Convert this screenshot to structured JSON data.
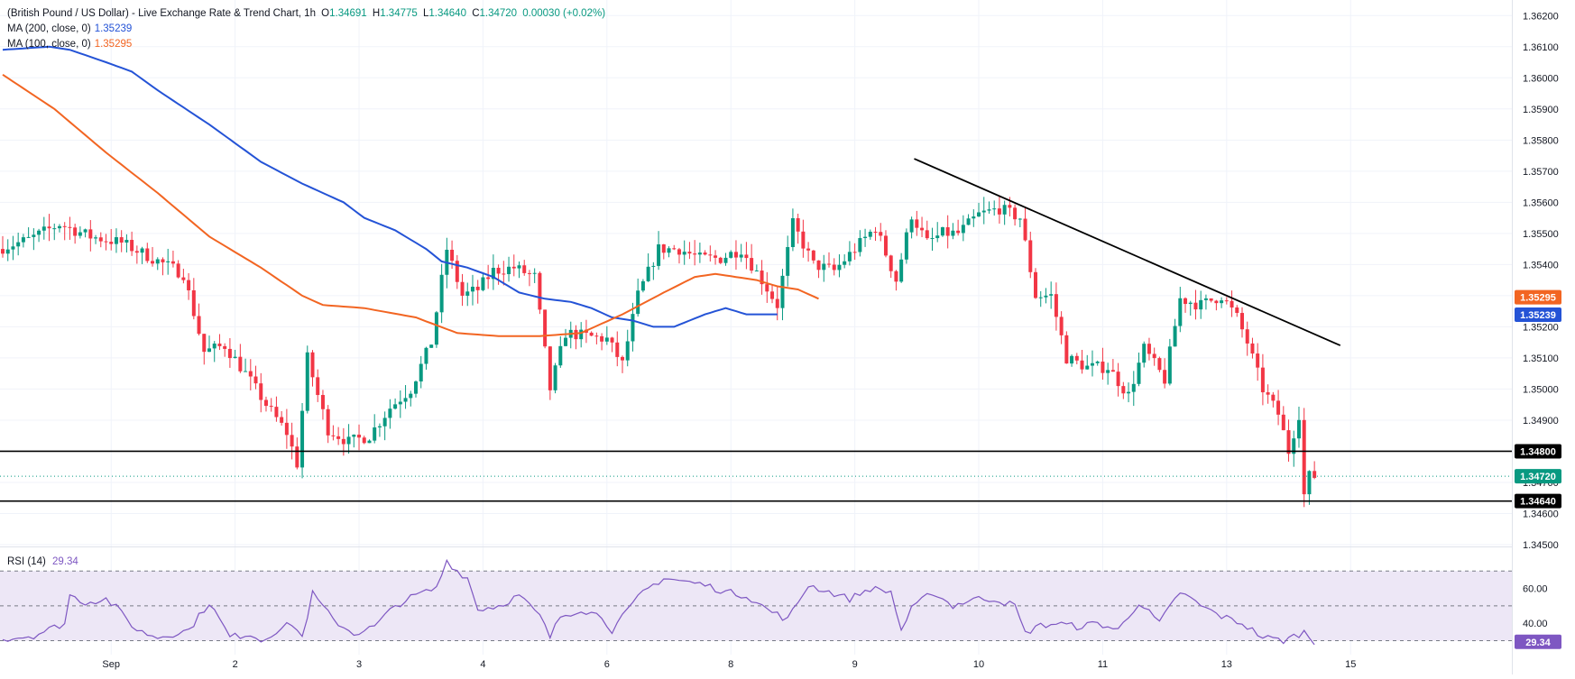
{
  "header": {
    "symbol_title": "(British Pound / US Dollar) - Live Exchange Rate & Trend Chart, 1h",
    "ohlc": {
      "o_label": "O",
      "o": "1.34691",
      "h_label": "H",
      "h": "1.34775",
      "l_label": "L",
      "l": "1.34640",
      "c_label": "C",
      "c": "1.34720",
      "change": "0.00030 (+0.02%)"
    },
    "ma200": {
      "label": "MA (200, close, 0)",
      "value": "1.35239"
    },
    "ma100": {
      "label": "MA (100, close, 0)",
      "value": "1.35295"
    },
    "rsi": {
      "label": "RSI (14)",
      "value": "29.34"
    }
  },
  "colors": {
    "up": "#089981",
    "down": "#f23645",
    "ma200": "#2453d6",
    "ma100": "#f26522",
    "rsi": "#7e57c2",
    "rsi_band": "#ede7f6",
    "axis_text": "#131722",
    "grid": "#f0f3fa",
    "level": "#000000"
  },
  "chart_data": [
    {
      "type": "candlestick",
      "title": "(British Pound / US Dollar) - Live Exchange Rate & Trend Chart, 1h",
      "ylim": [
        1.345,
        1.3625
      ],
      "y_ticks": [
        "1.36200",
        "1.36100",
        "1.36000",
        "1.35900",
        "1.35800",
        "1.35700",
        "1.35600",
        "1.35500",
        "1.35400",
        "1.35300",
        "1.35200",
        "1.35100",
        "1.35000",
        "1.34900",
        "1.34800",
        "1.34700",
        "1.34600",
        "1.34500"
      ],
      "x_ticks": [
        {
          "label": "Sep",
          "t": 21
        },
        {
          "label": "2",
          "t": 45
        },
        {
          "label": "3",
          "t": 69
        },
        {
          "label": "4",
          "t": 93
        },
        {
          "label": "6",
          "t": 117
        },
        {
          "label": "8",
          "t": 141
        },
        {
          "label": "9",
          "t": 165
        },
        {
          "label": "10",
          "t": 189
        },
        {
          "label": "11",
          "t": 213
        },
        {
          "label": "13",
          "t": 237
        },
        {
          "label": "15",
          "t": 261
        }
      ],
      "price_tags": [
        {
          "text": "1.35295",
          "value": 1.35295,
          "color": "#f26522"
        },
        {
          "text": "1.35239",
          "value": 1.35239,
          "color": "#2453d6"
        },
        {
          "text": "1.34800",
          "value": 1.348,
          "color": "#000000"
        },
        {
          "text": "1.34720",
          "value": 1.3472,
          "color": "#089981"
        },
        {
          "text": "1.34640",
          "value": 1.3464,
          "color": "#000000"
        }
      ],
      "horizontal_levels": [
        1.348,
        1.3464
      ],
      "trendline": {
        "t1": 176.5,
        "v1": 1.3574,
        "t2": 259,
        "v2": 1.3514
      },
      "ohlc_anchors": [
        [
          0,
          1.3545
        ],
        [
          6,
          1.3548
        ],
        [
          12,
          1.3553
        ],
        [
          18,
          1.3549
        ],
        [
          24,
          1.3547
        ],
        [
          30,
          1.3542
        ],
        [
          36,
          1.3537
        ],
        [
          40,
          1.3512
        ],
        [
          44,
          1.3514
        ],
        [
          48,
          1.3505
        ],
        [
          52,
          1.3495
        ],
        [
          56,
          1.3486
        ],
        [
          58,
          1.3476
        ],
        [
          60,
          1.351
        ],
        [
          62,
          1.3498
        ],
        [
          64,
          1.3487
        ],
        [
          68,
          1.3483
        ],
        [
          72,
          1.3485
        ],
        [
          76,
          1.3494
        ],
        [
          80,
          1.35
        ],
        [
          84,
          1.3515
        ],
        [
          87,
          1.3545
        ],
        [
          90,
          1.353
        ],
        [
          93,
          1.3532
        ],
        [
          96,
          1.3538
        ],
        [
          100,
          1.3539
        ],
        [
          104,
          1.3536
        ],
        [
          107,
          1.35
        ],
        [
          110,
          1.3518
        ],
        [
          114,
          1.3517
        ],
        [
          118,
          1.3516
        ],
        [
          121,
          1.3508
        ],
        [
          124,
          1.353
        ],
        [
          128,
          1.3545
        ],
        [
          132,
          1.3545
        ],
        [
          136,
          1.3542
        ],
        [
          140,
          1.3542
        ],
        [
          144,
          1.3545
        ],
        [
          148,
          1.3535
        ],
        [
          151,
          1.3527
        ],
        [
          154,
          1.3553
        ],
        [
          158,
          1.354
        ],
        [
          162,
          1.3538
        ],
        [
          166,
          1.3545
        ],
        [
          170,
          1.3552
        ],
        [
          174,
          1.3535
        ],
        [
          177,
          1.3556
        ],
        [
          180,
          1.3547
        ],
        [
          183,
          1.355
        ],
        [
          186,
          1.355
        ],
        [
          190,
          1.3556
        ],
        [
          194,
          1.3558
        ],
        [
          198,
          1.3555
        ],
        [
          201,
          1.353
        ],
        [
          204,
          1.353
        ],
        [
          207,
          1.351
        ],
        [
          211,
          1.3507
        ],
        [
          215,
          1.3507
        ],
        [
          219,
          1.3498
        ],
        [
          222,
          1.3513
        ],
        [
          226,
          1.3503
        ],
        [
          229,
          1.3529
        ],
        [
          233,
          1.3527
        ],
        [
          237,
          1.353
        ],
        [
          240,
          1.3523
        ],
        [
          242,
          1.3515
        ],
        [
          245,
          1.35
        ],
        [
          248,
          1.3492
        ],
        [
          250,
          1.348
        ],
        [
          252,
          1.3492
        ],
        [
          253,
          1.3466
        ],
        [
          254,
          1.3472
        ]
      ],
      "n_candles": 255,
      "ma200_anchors": [
        [
          0,
          1.3609
        ],
        [
          9,
          1.361
        ],
        [
          13,
          1.3609
        ],
        [
          20,
          1.3605
        ],
        [
          25,
          1.3602
        ],
        [
          30,
          1.3596
        ],
        [
          40,
          1.3585
        ],
        [
          50,
          1.3573
        ],
        [
          58,
          1.3566
        ],
        [
          66,
          1.356
        ],
        [
          70,
          1.3555
        ],
        [
          76,
          1.3551
        ],
        [
          82,
          1.3545
        ],
        [
          85,
          1.3541
        ],
        [
          90,
          1.3539
        ],
        [
          95,
          1.3536
        ],
        [
          100,
          1.3531
        ],
        [
          105,
          1.3529
        ],
        [
          110,
          1.3528
        ],
        [
          114,
          1.3526
        ],
        [
          118,
          1.3523
        ],
        [
          122,
          1.3522
        ],
        [
          126,
          1.352
        ],
        [
          130,
          1.352
        ],
        [
          136,
          1.3524
        ],
        [
          140,
          1.3526
        ],
        [
          144,
          1.3524
        ],
        [
          150,
          1.3524
        ]
      ],
      "ma100_anchors": [
        [
          0,
          1.3601
        ],
        [
          10,
          1.359
        ],
        [
          20,
          1.3576
        ],
        [
          30,
          1.3563
        ],
        [
          40,
          1.3549
        ],
        [
          50,
          1.3539
        ],
        [
          58,
          1.353
        ],
        [
          62,
          1.3527
        ],
        [
          70,
          1.3526
        ],
        [
          80,
          1.3523
        ],
        [
          88,
          1.3518
        ],
        [
          96,
          1.3517
        ],
        [
          104,
          1.3517
        ],
        [
          112,
          1.3518
        ],
        [
          120,
          1.3524
        ],
        [
          128,
          1.3531
        ],
        [
          134,
          1.3536
        ],
        [
          138,
          1.3537
        ],
        [
          142,
          1.3536
        ],
        [
          146,
          1.3535
        ],
        [
          150,
          1.3533
        ],
        [
          154,
          1.3532
        ],
        [
          158,
          1.3529
        ]
      ],
      "x_map": {
        "t0": 0,
        "px0": 3,
        "px_per_t": 5.725
      }
    },
    {
      "type": "line",
      "title": "RSI (14)",
      "ylim": [
        22,
        82
      ],
      "y_ticks": [
        "60.00",
        "40.00"
      ],
      "bands": [
        70,
        50,
        30
      ],
      "last_value": 29.34,
      "anchors": [
        [
          0,
          31
        ],
        [
          6,
          33
        ],
        [
          12,
          40
        ],
        [
          13,
          56
        ],
        [
          16,
          52
        ],
        [
          20,
          54
        ],
        [
          22,
          49
        ],
        [
          26,
          36
        ],
        [
          30,
          32
        ],
        [
          36,
          36
        ],
        [
          40,
          52
        ],
        [
          44,
          32
        ],
        [
          48,
          34
        ],
        [
          50,
          30
        ],
        [
          52,
          34
        ],
        [
          56,
          40
        ],
        [
          58,
          32
        ],
        [
          60,
          57
        ],
        [
          64,
          42
        ],
        [
          68,
          34
        ],
        [
          72,
          38
        ],
        [
          76,
          50
        ],
        [
          80,
          56
        ],
        [
          84,
          60
        ],
        [
          86,
          76
        ],
        [
          88,
          70
        ],
        [
          90,
          66
        ],
        [
          92,
          48
        ],
        [
          96,
          50
        ],
        [
          100,
          56
        ],
        [
          104,
          44
        ],
        [
          106,
          32
        ],
        [
          108,
          44
        ],
        [
          112,
          48
        ],
        [
          116,
          44
        ],
        [
          118,
          36
        ],
        [
          124,
          58
        ],
        [
          128,
          66
        ],
        [
          132,
          64
        ],
        [
          136,
          62
        ],
        [
          140,
          58
        ],
        [
          144,
          56
        ],
        [
          148,
          48
        ],
        [
          152,
          42
        ],
        [
          156,
          62
        ],
        [
          160,
          58
        ],
        [
          164,
          54
        ],
        [
          168,
          60
        ],
        [
          172,
          58
        ],
        [
          174,
          36
        ],
        [
          176,
          48
        ],
        [
          180,
          58
        ],
        [
          184,
          50
        ],
        [
          188,
          54
        ],
        [
          192,
          54
        ],
        [
          196,
          50
        ],
        [
          198,
          34
        ],
        [
          200,
          38
        ],
        [
          204,
          40
        ],
        [
          208,
          38
        ],
        [
          212,
          40
        ],
        [
          216,
          36
        ],
        [
          220,
          52
        ],
        [
          224,
          40
        ],
        [
          228,
          58
        ],
        [
          232,
          50
        ],
        [
          236,
          44
        ],
        [
          240,
          40
        ],
        [
          244,
          32
        ],
        [
          248,
          30
        ],
        [
          252,
          35
        ],
        [
          254,
          29
        ]
      ]
    }
  ]
}
